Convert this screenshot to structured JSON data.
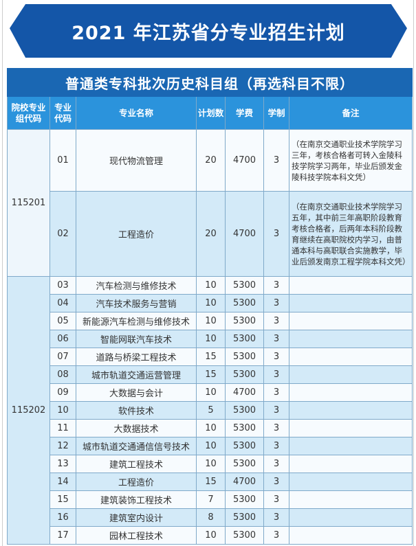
{
  "banner": "2021 年江苏省分专业招生计划",
  "table_title": "普通类专科批次历史科目组（再选科目不限）",
  "headers": [
    "院校专业组代码",
    "专业代码",
    "专业名称",
    "计划数",
    "学费",
    "学制",
    "备注"
  ],
  "groups": [
    {
      "code": "115201",
      "rows": [
        {
          "code": "01",
          "name": "现代物流管理",
          "plan": "20",
          "fee": "4700",
          "years": "3",
          "note": "（在南京交通职业技术学院学习三年，考核合格者可转入金陵科技学院学习两年，毕业后颁发金陵科技学院本科文凭）"
        },
        {
          "code": "02",
          "name": "工程造价",
          "plan": "20",
          "fee": "4700",
          "years": "3",
          "note": "（在南京交通职业技术学院学习五年，其中前三年高职阶段教育考核合格者，后两年本科阶段教育继续在高职院校内学习，由普通本科与高职联合实施教学，毕业后颁发南京工程学院本科文凭）"
        }
      ]
    },
    {
      "code": "115202",
      "rows": [
        {
          "code": "03",
          "name": "汽车检测与维修技术",
          "plan": "10",
          "fee": "5300",
          "years": "3",
          "note": ""
        },
        {
          "code": "04",
          "name": "汽车技术服务与营销",
          "plan": "10",
          "fee": "5300",
          "years": "3",
          "note": ""
        },
        {
          "code": "05",
          "name": "新能源汽车检测与维修技术",
          "plan": "10",
          "fee": "5300",
          "years": "3",
          "note": ""
        },
        {
          "code": "06",
          "name": "智能网联汽车技术",
          "plan": "10",
          "fee": "5300",
          "years": "3",
          "note": ""
        },
        {
          "code": "07",
          "name": "道路与桥梁工程技术",
          "plan": "15",
          "fee": "5300",
          "years": "3",
          "note": ""
        },
        {
          "code": "08",
          "name": "城市轨道交通运营管理",
          "plan": "15",
          "fee": "5300",
          "years": "3",
          "note": ""
        },
        {
          "code": "09",
          "name": "大数据与会计",
          "plan": "10",
          "fee": "4700",
          "years": "3",
          "note": ""
        },
        {
          "code": "10",
          "name": "软件技术",
          "plan": "5",
          "fee": "5300",
          "years": "3",
          "note": ""
        },
        {
          "code": "11",
          "name": "大数据技术",
          "plan": "10",
          "fee": "5300",
          "years": "3",
          "note": ""
        },
        {
          "code": "12",
          "name": "城市轨道交通通信信号技术",
          "plan": "10",
          "fee": "5300",
          "years": "3",
          "note": ""
        },
        {
          "code": "13",
          "name": "建筑工程技术",
          "plan": "10",
          "fee": "5300",
          "years": "3",
          "note": ""
        },
        {
          "code": "14",
          "name": "工程造价",
          "plan": "15",
          "fee": "4700",
          "years": "3",
          "note": ""
        },
        {
          "code": "15",
          "name": "建筑装饰工程技术",
          "plan": "7",
          "fee": "5300",
          "years": "3",
          "note": ""
        },
        {
          "code": "16",
          "name": "建筑室内设计",
          "plan": "8",
          "fee": "5300",
          "years": "3",
          "note": ""
        },
        {
          "code": "17",
          "name": "园林工程技术",
          "plan": "10",
          "fee": "5300",
          "years": "3",
          "note": ""
        }
      ]
    }
  ]
}
